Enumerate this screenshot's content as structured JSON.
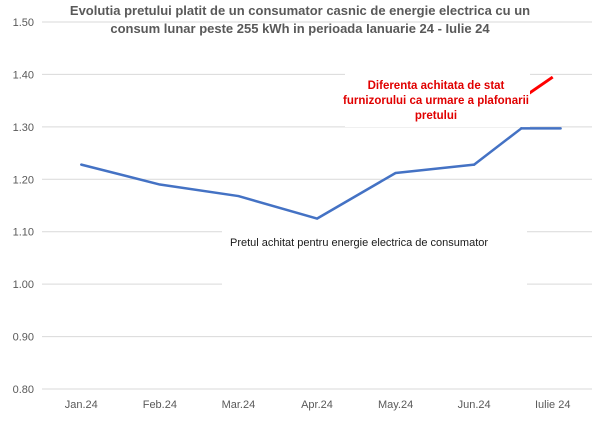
{
  "chart_data": {
    "type": "line",
    "title_lines": [
      "Evolutia pretului platit de un consumator casnic de energie electrica cu un",
      "consum lunar peste 255 kWh in perioada Ianuarie 24 - Iulie 24"
    ],
    "categories": [
      "Jan.24",
      "Feb.24",
      "Mar.24",
      "Apr.24",
      "May.24",
      "Jun.24",
      "Iulie 24"
    ],
    "y_ticks": [
      "0.80",
      "0.90",
      "1.00",
      "1.10",
      "1.20",
      "1.30",
      "1.40",
      "1.50"
    ],
    "ylim": [
      0.8,
      1.5
    ],
    "grid": true,
    "series": [
      {
        "values": [
          1.228,
          1.19,
          1.168,
          1.125,
          1.212,
          1.228,
          1.297
        ],
        "color": "#4472c4"
      },
      {
        "values": [
          null,
          null,
          null,
          null,
          null,
          1.325,
          1.395
        ],
        "color": "#ff0000"
      }
    ],
    "annotations": {
      "supplier_difference": [
        "Diferenta achitata de stat",
        "furnizorului ca urmare a plafonarii",
        "pretului"
      ],
      "consumer_price": "Pretul achitat pentru energie electrica de consumator"
    }
  }
}
